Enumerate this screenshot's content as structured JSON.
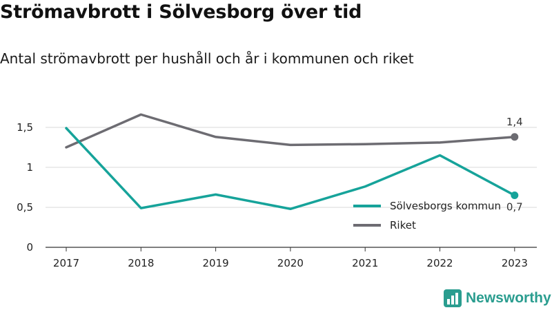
{
  "header": {
    "title": "Strömavbrott i Sölvesborg över tid",
    "subtitle": "Antal strömavbrott per hushåll och år i kommunen och riket"
  },
  "branding": {
    "name": "Newsworthy",
    "icon": "bar-chart-logo-icon",
    "color": "#2a9d8f"
  },
  "chart_data": {
    "type": "line",
    "title": "Strömavbrott i Sölvesborg över tid",
    "subtitle": "Antal strömavbrott per hushåll och år i kommunen och riket",
    "x": [
      "2017",
      "2018",
      "2019",
      "2020",
      "2021",
      "2022",
      "2023"
    ],
    "y_ticks": [
      0,
      0.5,
      1,
      1.5
    ],
    "y_tick_labels": [
      "0",
      "0,5",
      "1",
      "1,5"
    ],
    "ylim": [
      0,
      1.8
    ],
    "grid": "horizontal",
    "legend_position": "bottom-right",
    "series": [
      {
        "name": "Sölvesborgs kommun",
        "color": "#16a39a",
        "values": [
          1.49,
          0.49,
          0.66,
          0.48,
          0.76,
          1.15,
          0.65
        ],
        "end_label": "0,7"
      },
      {
        "name": "Riket",
        "color": "#6d6c72",
        "values": [
          1.25,
          1.66,
          1.38,
          1.28,
          1.29,
          1.31,
          1.38
        ],
        "end_label": "1,4"
      }
    ]
  }
}
